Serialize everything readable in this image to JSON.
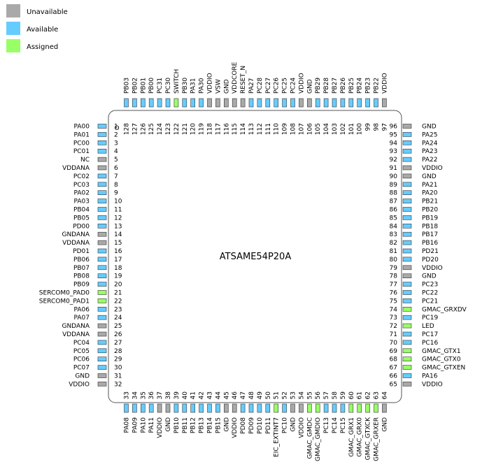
{
  "legend": [
    {
      "label": "Unavailable",
      "status": "unavailable"
    },
    {
      "label": "Available",
      "status": "available"
    },
    {
      "label": "Assigned",
      "status": "assigned"
    }
  ],
  "colors": {
    "unavailable": "#a9a9a9",
    "available": "#66ccff",
    "assigned": "#99ff66",
    "chip_outline": "#555555",
    "pad_outline": "#333333"
  },
  "chip": {
    "name": "ATSAME54P20A",
    "orientation_mark": "O"
  },
  "pins": {
    "left": [
      {
        "num": "1",
        "label": "PA00",
        "status": "available"
      },
      {
        "num": "2",
        "label": "PA01",
        "status": "available"
      },
      {
        "num": "3",
        "label": "PC00",
        "status": "available"
      },
      {
        "num": "4",
        "label": "PC01",
        "status": "available"
      },
      {
        "num": "5",
        "label": "NC",
        "status": "unavailable"
      },
      {
        "num": "6",
        "label": "VDDANA",
        "status": "unavailable"
      },
      {
        "num": "7",
        "label": "PC02",
        "status": "available"
      },
      {
        "num": "8",
        "label": "PC03",
        "status": "available"
      },
      {
        "num": "9",
        "label": "PA02",
        "status": "available"
      },
      {
        "num": "10",
        "label": "PA03",
        "status": "available"
      },
      {
        "num": "11",
        "label": "PB04",
        "status": "available"
      },
      {
        "num": "12",
        "label": "PB05",
        "status": "available"
      },
      {
        "num": "13",
        "label": "PD00",
        "status": "available"
      },
      {
        "num": "14",
        "label": "GNDANA",
        "status": "unavailable"
      },
      {
        "num": "15",
        "label": "VDDANA",
        "status": "unavailable"
      },
      {
        "num": "16",
        "label": "PD01",
        "status": "available"
      },
      {
        "num": "17",
        "label": "PB06",
        "status": "available"
      },
      {
        "num": "18",
        "label": "PB07",
        "status": "available"
      },
      {
        "num": "19",
        "label": "PB08",
        "status": "available"
      },
      {
        "num": "20",
        "label": "PB09",
        "status": "available"
      },
      {
        "num": "21",
        "label": "SERCOM0_PAD0",
        "status": "assigned"
      },
      {
        "num": "22",
        "label": "SERCOM0_PAD1",
        "status": "assigned"
      },
      {
        "num": "23",
        "label": "PA06",
        "status": "available"
      },
      {
        "num": "24",
        "label": "PA07",
        "status": "available"
      },
      {
        "num": "25",
        "label": "GNDANA",
        "status": "unavailable"
      },
      {
        "num": "26",
        "label": "VDDANA",
        "status": "unavailable"
      },
      {
        "num": "27",
        "label": "PC04",
        "status": "available"
      },
      {
        "num": "28",
        "label": "PC05",
        "status": "available"
      },
      {
        "num": "29",
        "label": "PC06",
        "status": "available"
      },
      {
        "num": "30",
        "label": "PC07",
        "status": "available"
      },
      {
        "num": "31",
        "label": "GND",
        "status": "unavailable"
      },
      {
        "num": "32",
        "label": "VDDIO",
        "status": "unavailable"
      }
    ],
    "bottom": [
      {
        "num": "33",
        "label": "PA08",
        "status": "available"
      },
      {
        "num": "34",
        "label": "PA09",
        "status": "available"
      },
      {
        "num": "35",
        "label": "PA10",
        "status": "available"
      },
      {
        "num": "36",
        "label": "PA11",
        "status": "available"
      },
      {
        "num": "37",
        "label": "VDDIO",
        "status": "unavailable"
      },
      {
        "num": "38",
        "label": "GND",
        "status": "unavailable"
      },
      {
        "num": "39",
        "label": "PB10",
        "status": "available"
      },
      {
        "num": "40",
        "label": "PB11",
        "status": "available"
      },
      {
        "num": "41",
        "label": "PB12",
        "status": "available"
      },
      {
        "num": "42",
        "label": "PB13",
        "status": "available"
      },
      {
        "num": "43",
        "label": "PB14",
        "status": "available"
      },
      {
        "num": "44",
        "label": "PB15",
        "status": "available"
      },
      {
        "num": "45",
        "label": "GND",
        "status": "unavailable"
      },
      {
        "num": "46",
        "label": "VDDIO",
        "status": "unavailable"
      },
      {
        "num": "47",
        "label": "PD08",
        "status": "available"
      },
      {
        "num": "48",
        "label": "PD09",
        "status": "available"
      },
      {
        "num": "49",
        "label": "PD10",
        "status": "available"
      },
      {
        "num": "50",
        "label": "PD11",
        "status": "available"
      },
      {
        "num": "51",
        "label": "EIC_EXTINT7",
        "status": "assigned"
      },
      {
        "num": "52",
        "label": "PC10",
        "status": "available"
      },
      {
        "num": "53",
        "label": "GND",
        "status": "unavailable"
      },
      {
        "num": "54",
        "label": "VDDIO",
        "status": "unavailable"
      },
      {
        "num": "55",
        "label": "GMAC_GMDC",
        "status": "assigned"
      },
      {
        "num": "56",
        "label": "GMAC_GMDIO",
        "status": "assigned"
      },
      {
        "num": "57",
        "label": "PC13",
        "status": "available"
      },
      {
        "num": "58",
        "label": "PC14",
        "status": "available"
      },
      {
        "num": "59",
        "label": "PC15",
        "status": "available"
      },
      {
        "num": "60",
        "label": "GMAC_GRX1",
        "status": "assigned"
      },
      {
        "num": "61",
        "label": "GMAC_GRX0",
        "status": "assigned"
      },
      {
        "num": "62",
        "label": "GMAC_GTXCK",
        "status": "assigned"
      },
      {
        "num": "63",
        "label": "GMAC_GRXER",
        "status": "assigned"
      },
      {
        "num": "64",
        "label": "GND",
        "status": "unavailable"
      }
    ],
    "right": [
      {
        "num": "65",
        "label": "VDDIO",
        "status": "unavailable"
      },
      {
        "num": "66",
        "label": "PA16",
        "status": "available"
      },
      {
        "num": "67",
        "label": "GMAC_GTXEN",
        "status": "assigned"
      },
      {
        "num": "68",
        "label": "GMAC_GTX0",
        "status": "assigned"
      },
      {
        "num": "69",
        "label": "GMAC_GTX1",
        "status": "assigned"
      },
      {
        "num": "70",
        "label": "PC16",
        "status": "available"
      },
      {
        "num": "71",
        "label": "PC17",
        "status": "available"
      },
      {
        "num": "72",
        "label": "LED",
        "status": "assigned"
      },
      {
        "num": "73",
        "label": "PC19",
        "status": "available"
      },
      {
        "num": "74",
        "label": "GMAC_GRXDV",
        "status": "assigned"
      },
      {
        "num": "75",
        "label": "PC21",
        "status": "available"
      },
      {
        "num": "76",
        "label": "PC22",
        "status": "available"
      },
      {
        "num": "77",
        "label": "PC23",
        "status": "available"
      },
      {
        "num": "78",
        "label": "GND",
        "status": "unavailable"
      },
      {
        "num": "79",
        "label": "VDDIO",
        "status": "unavailable"
      },
      {
        "num": "80",
        "label": "PD20",
        "status": "available"
      },
      {
        "num": "81",
        "label": "PD21",
        "status": "available"
      },
      {
        "num": "82",
        "label": "PB16",
        "status": "available"
      },
      {
        "num": "83",
        "label": "PB17",
        "status": "available"
      },
      {
        "num": "84",
        "label": "PB18",
        "status": "available"
      },
      {
        "num": "85",
        "label": "PB19",
        "status": "available"
      },
      {
        "num": "86",
        "label": "PB20",
        "status": "available"
      },
      {
        "num": "87",
        "label": "PB21",
        "status": "available"
      },
      {
        "num": "88",
        "label": "PA20",
        "status": "available"
      },
      {
        "num": "89",
        "label": "PA21",
        "status": "available"
      },
      {
        "num": "90",
        "label": "GND",
        "status": "unavailable"
      },
      {
        "num": "91",
        "label": "VDDIO",
        "status": "unavailable"
      },
      {
        "num": "92",
        "label": "PA22",
        "status": "available"
      },
      {
        "num": "93",
        "label": "PA23",
        "status": "available"
      },
      {
        "num": "94",
        "label": "PA24",
        "status": "available"
      },
      {
        "num": "95",
        "label": "PA25",
        "status": "available"
      },
      {
        "num": "96",
        "label": "GND",
        "status": "unavailable"
      }
    ],
    "top": [
      {
        "num": "97",
        "label": "VDDIO",
        "status": "unavailable"
      },
      {
        "num": "98",
        "label": "PB22",
        "status": "available"
      },
      {
        "num": "99",
        "label": "PB23",
        "status": "available"
      },
      {
        "num": "100",
        "label": "PB24",
        "status": "available"
      },
      {
        "num": "101",
        "label": "PB25",
        "status": "available"
      },
      {
        "num": "102",
        "label": "PB26",
        "status": "available"
      },
      {
        "num": "103",
        "label": "PB27",
        "status": "available"
      },
      {
        "num": "104",
        "label": "PB28",
        "status": "available"
      },
      {
        "num": "105",
        "label": "PB29",
        "status": "available"
      },
      {
        "num": "106",
        "label": "GND",
        "status": "unavailable"
      },
      {
        "num": "107",
        "label": "VDDIO",
        "status": "unavailable"
      },
      {
        "num": "108",
        "label": "PC24",
        "status": "available"
      },
      {
        "num": "109",
        "label": "PC25",
        "status": "available"
      },
      {
        "num": "110",
        "label": "PC26",
        "status": "available"
      },
      {
        "num": "111",
        "label": "PC27",
        "status": "available"
      },
      {
        "num": "112",
        "label": "PC28",
        "status": "available"
      },
      {
        "num": "113",
        "label": "PA27",
        "status": "available"
      },
      {
        "num": "114",
        "label": "RESET_N",
        "status": "unavailable"
      },
      {
        "num": "115",
        "label": "VDDCORE",
        "status": "unavailable"
      },
      {
        "num": "116",
        "label": "GND",
        "status": "unavailable"
      },
      {
        "num": "117",
        "label": "VSW",
        "status": "unavailable"
      },
      {
        "num": "118",
        "label": "VDDIO",
        "status": "unavailable"
      },
      {
        "num": "119",
        "label": "PA30",
        "status": "available"
      },
      {
        "num": "120",
        "label": "PA31",
        "status": "available"
      },
      {
        "num": "121",
        "label": "PB30",
        "status": "available"
      },
      {
        "num": "122",
        "label": "SWITCH",
        "status": "assigned"
      },
      {
        "num": "123",
        "label": "PC30",
        "status": "available"
      },
      {
        "num": "124",
        "label": "PC31",
        "status": "available"
      },
      {
        "num": "125",
        "label": "PB00",
        "status": "available"
      },
      {
        "num": "126",
        "label": "PB01",
        "status": "available"
      },
      {
        "num": "127",
        "label": "PB02",
        "status": "available"
      },
      {
        "num": "128",
        "label": "PB03",
        "status": "available"
      }
    ]
  }
}
